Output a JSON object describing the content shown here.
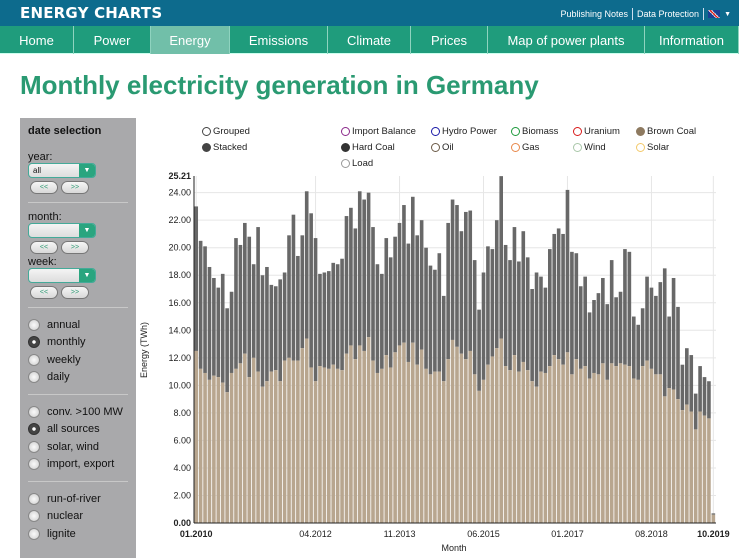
{
  "header": {
    "logo": "ENERGY CHARTS",
    "links": [
      "Publishing Notes",
      "Data Protection"
    ],
    "language_icon": "uk-flag-icon"
  },
  "nav": [
    {
      "label": "Home",
      "w": 74
    },
    {
      "label": "Power",
      "w": 77
    },
    {
      "label": "Energy",
      "w": 79,
      "active": true
    },
    {
      "label": "Emissions",
      "w": 98
    },
    {
      "label": "Climate",
      "w": 83
    },
    {
      "label": "Prices",
      "w": 77
    },
    {
      "label": "Map of power plants",
      "w": 157
    },
    {
      "label": "Information",
      "w": 94
    }
  ],
  "page_title": "Monthly electricity generation in Germany",
  "sidebar": {
    "heading": "date selection",
    "year_label": "year:",
    "year_value": "all",
    "month_label": "month:",
    "month_value": "",
    "week_label": "week:",
    "week_value": "",
    "prev": "<<",
    "next": ">>",
    "interval": [
      {
        "label": "annual"
      },
      {
        "label": "monthly",
        "checked": true
      },
      {
        "label": "weekly"
      },
      {
        "label": "daily"
      }
    ],
    "sources": [
      {
        "label": "conv. >100 MW"
      },
      {
        "label": "all sources",
        "checked": true
      },
      {
        "label": "solar, wind"
      },
      {
        "label": "import, export"
      }
    ],
    "types": [
      {
        "label": "run-of-river"
      },
      {
        "label": "nuclear"
      },
      {
        "label": "lignite"
      }
    ]
  },
  "legend": {
    "modes": [
      {
        "label": "Grouped",
        "color": "#444",
        "filled": false
      },
      {
        "label": "Stacked",
        "color": "#444",
        "filled": true
      }
    ],
    "series": [
      {
        "label": "Import Balance",
        "color": "#8b2a8b",
        "filled": false
      },
      {
        "label": "Hydro Power",
        "color": "#1a1aa8",
        "filled": false
      },
      {
        "label": "Biomass",
        "color": "#1e9a3c",
        "filled": false
      },
      {
        "label": "Uranium",
        "color": "#d81b1b",
        "filled": false
      },
      {
        "label": "Brown Coal",
        "color": "#8e7a60",
        "filled": true
      },
      {
        "label": "Hard Coal",
        "color": "#333333",
        "filled": true
      },
      {
        "label": "Oil",
        "color": "#6b5a47",
        "filled": false
      },
      {
        "label": "Gas",
        "color": "#e8884a",
        "filled": false
      },
      {
        "label": "Wind",
        "color": "#a9c7a9",
        "filled": false
      },
      {
        "label": "Solar",
        "color": "#f3c96a",
        "filled": false
      },
      {
        "label": "Load",
        "color": "#999999",
        "filled": false
      }
    ]
  },
  "chart_data": {
    "type": "bar",
    "stacked": true,
    "ylabel": "Energy (TWh)",
    "xlabel": "Month",
    "ylim": [
      0,
      25.21
    ],
    "ymax_label": "25.21",
    "yticks": [
      "0.00",
      "2.00",
      "4.00",
      "6.00",
      "8.00",
      "10.00",
      "12.00",
      "14.00",
      "16.00",
      "18.00",
      "20.00",
      "22.00",
      "24.00"
    ],
    "xticks": [
      {
        "label": "01.2010",
        "index": 0,
        "bold": true
      },
      {
        "label": "04.2012",
        "index": 27
      },
      {
        "label": "11.2013",
        "index": 46
      },
      {
        "label": "06.2015",
        "index": 65
      },
      {
        "label": "01.2017",
        "index": 84
      },
      {
        "label": "08.2018",
        "index": 103
      },
      {
        "label": "10.2019",
        "index": 117,
        "bold": true
      }
    ],
    "x_range": [
      "01.2010",
      "10.2019"
    ],
    "grid": true,
    "series": [
      {
        "name": "Brown Coal",
        "color": "#b8a68f",
        "values": [
          12.5,
          11.2,
          10.9,
          10.4,
          10.7,
          10.6,
          10.2,
          9.5,
          10.9,
          11.2,
          11.6,
          12.3,
          10.6,
          12.0,
          11.0,
          9.9,
          10.3,
          11.0,
          11.1,
          10.3,
          11.8,
          12.0,
          11.8,
          11.8,
          12.7,
          13.4,
          11.3,
          10.3,
          11.4,
          11.3,
          11.2,
          11.5,
          11.2,
          11.1,
          12.3,
          12.9,
          11.9,
          12.9,
          12.5,
          13.5,
          11.8,
          10.9,
          11.2,
          12.2,
          11.3,
          12.4,
          12.9,
          13.1,
          11.7,
          13.1,
          11.5,
          12.6,
          11.2,
          10.8,
          11.0,
          11.0,
          10.3,
          11.9,
          13.3,
          12.8,
          12.3,
          11.9,
          12.5,
          10.8,
          9.6,
          10.4,
          11.5,
          12.1,
          12.7,
          13.4,
          11.4,
          11.1,
          12.2,
          11.0,
          11.7,
          11.1,
          10.3,
          9.9,
          11.0,
          10.9,
          11.4,
          12.2,
          11.9,
          11.5,
          12.4,
          10.8,
          11.9,
          11.2,
          11.4,
          10.5,
          10.9,
          10.8,
          11.6,
          10.4,
          11.6,
          11.4,
          11.6,
          11.5,
          11.4,
          10.5,
          10.4,
          11.4,
          11.8,
          11.2,
          10.8,
          10.8,
          9.2,
          9.8,
          9.7,
          9.0,
          8.2,
          8.6,
          8.1,
          6.8,
          8.1,
          7.8,
          7.6,
          0.6
        ]
      },
      {
        "name": "Hard Coal",
        "color": "#686868",
        "totals": [
          23.0,
          20.5,
          20.1,
          18.6,
          17.8,
          17.1,
          18.1,
          15.6,
          16.8,
          20.7,
          20.2,
          21.8,
          20.8,
          18.8,
          21.5,
          18.0,
          18.6,
          17.3,
          17.2,
          17.7,
          18.2,
          20.9,
          22.4,
          19.4,
          20.9,
          24.1,
          22.5,
          20.7,
          18.1,
          18.2,
          18.3,
          18.9,
          18.8,
          19.2,
          22.3,
          22.9,
          21.4,
          24.1,
          23.5,
          24.0,
          21.5,
          18.8,
          18.1,
          20.7,
          19.3,
          20.8,
          21.8,
          23.1,
          20.3,
          23.7,
          20.9,
          22.0,
          20.0,
          18.7,
          18.4,
          19.6,
          16.5,
          21.8,
          23.5,
          23.1,
          21.2,
          22.6,
          22.7,
          19.1,
          15.5,
          18.2,
          20.1,
          19.9,
          22.0,
          25.2,
          20.2,
          19.1,
          21.5,
          19.0,
          21.2,
          19.3,
          17.0,
          18.2,
          17.9,
          17.1,
          19.9,
          21.0,
          21.4,
          21.0,
          24.2,
          19.7,
          19.6,
          17.2,
          17.9,
          15.3,
          16.2,
          16.7,
          17.8,
          15.9,
          19.1,
          16.4,
          16.8,
          19.9,
          19.7,
          15.0,
          14.4,
          15.6,
          17.9,
          17.1,
          16.5,
          17.5,
          18.5,
          15.0,
          17.8,
          15.7,
          11.5,
          12.7,
          12.2,
          9.4,
          11.4,
          10.6,
          10.3,
          0.7
        ]
      }
    ]
  }
}
